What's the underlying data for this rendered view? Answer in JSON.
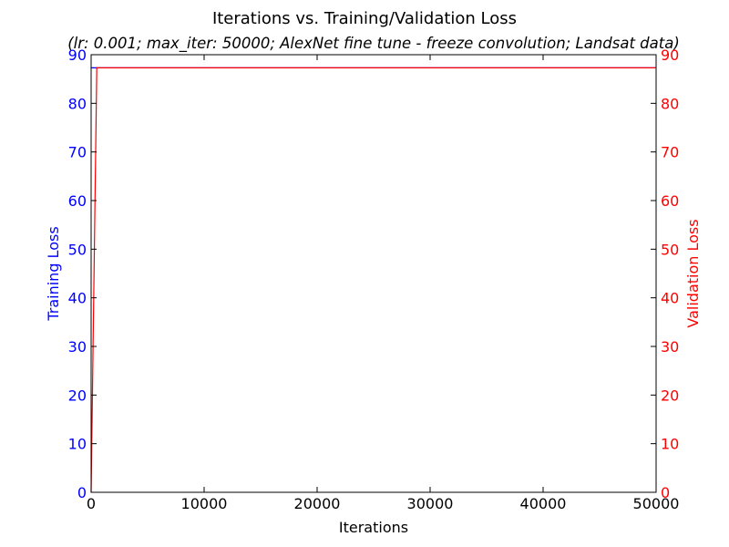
{
  "chart_data": {
    "type": "line",
    "title": "Iterations vs. Training/Validation Loss",
    "subtitle": "(lr: 0.001; max_iter: 50000; AlexNet fine tune - freeze convolution; Landsat data)",
    "xlabel": "Iterations",
    "ylabel_left": "Training Loss",
    "ylabel_right": "Validation Loss",
    "xlim": [
      0,
      50000
    ],
    "ylim_left": [
      0,
      90
    ],
    "ylim_right": [
      0,
      90
    ],
    "x_ticks": [
      "0",
      "10000",
      "20000",
      "30000",
      "40000",
      "50000"
    ],
    "y_ticks_left": [
      "0",
      "10",
      "20",
      "30",
      "40",
      "50",
      "60",
      "70",
      "80",
      "90"
    ],
    "y_ticks_right": [
      "0",
      "10",
      "20",
      "30",
      "40",
      "50",
      "60",
      "70",
      "80",
      "90"
    ],
    "grid": false,
    "colors": {
      "training": "#0000ff",
      "validation": "#ff0000",
      "axis_left": "#0000ff",
      "axis_right": "#ff0000"
    },
    "series": [
      {
        "axis": "left",
        "x": [
          0,
          50000
        ],
        "values": [
          87.3,
          87.3
        ]
      },
      {
        "axis": "right",
        "x": [
          0,
          500,
          50000
        ],
        "values": [
          0,
          87.3,
          87.3
        ]
      }
    ]
  }
}
